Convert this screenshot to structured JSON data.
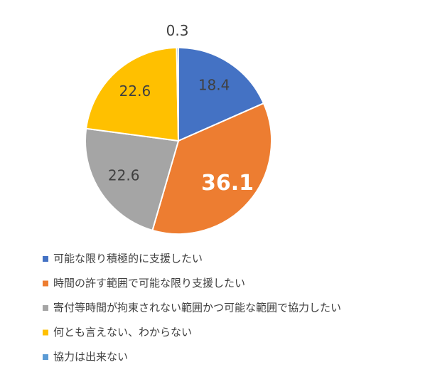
{
  "chart_data": {
    "type": "pie",
    "categories": [
      "可能な限り積極的に支援したい",
      "時間の許す範囲で可能な限り支援したい",
      "寄付等時間が拘束されない範囲かつ可能な範囲で協力したい",
      "何とも言えない、わからない",
      "協力は出来ない"
    ],
    "values": [
      18.4,
      36.1,
      22.6,
      22.6,
      0.3
    ],
    "colors": [
      "#4472c4",
      "#ed7d31",
      "#a5a5a5",
      "#ffc000",
      "#5b9bd5"
    ],
    "legend": "bottom"
  }
}
